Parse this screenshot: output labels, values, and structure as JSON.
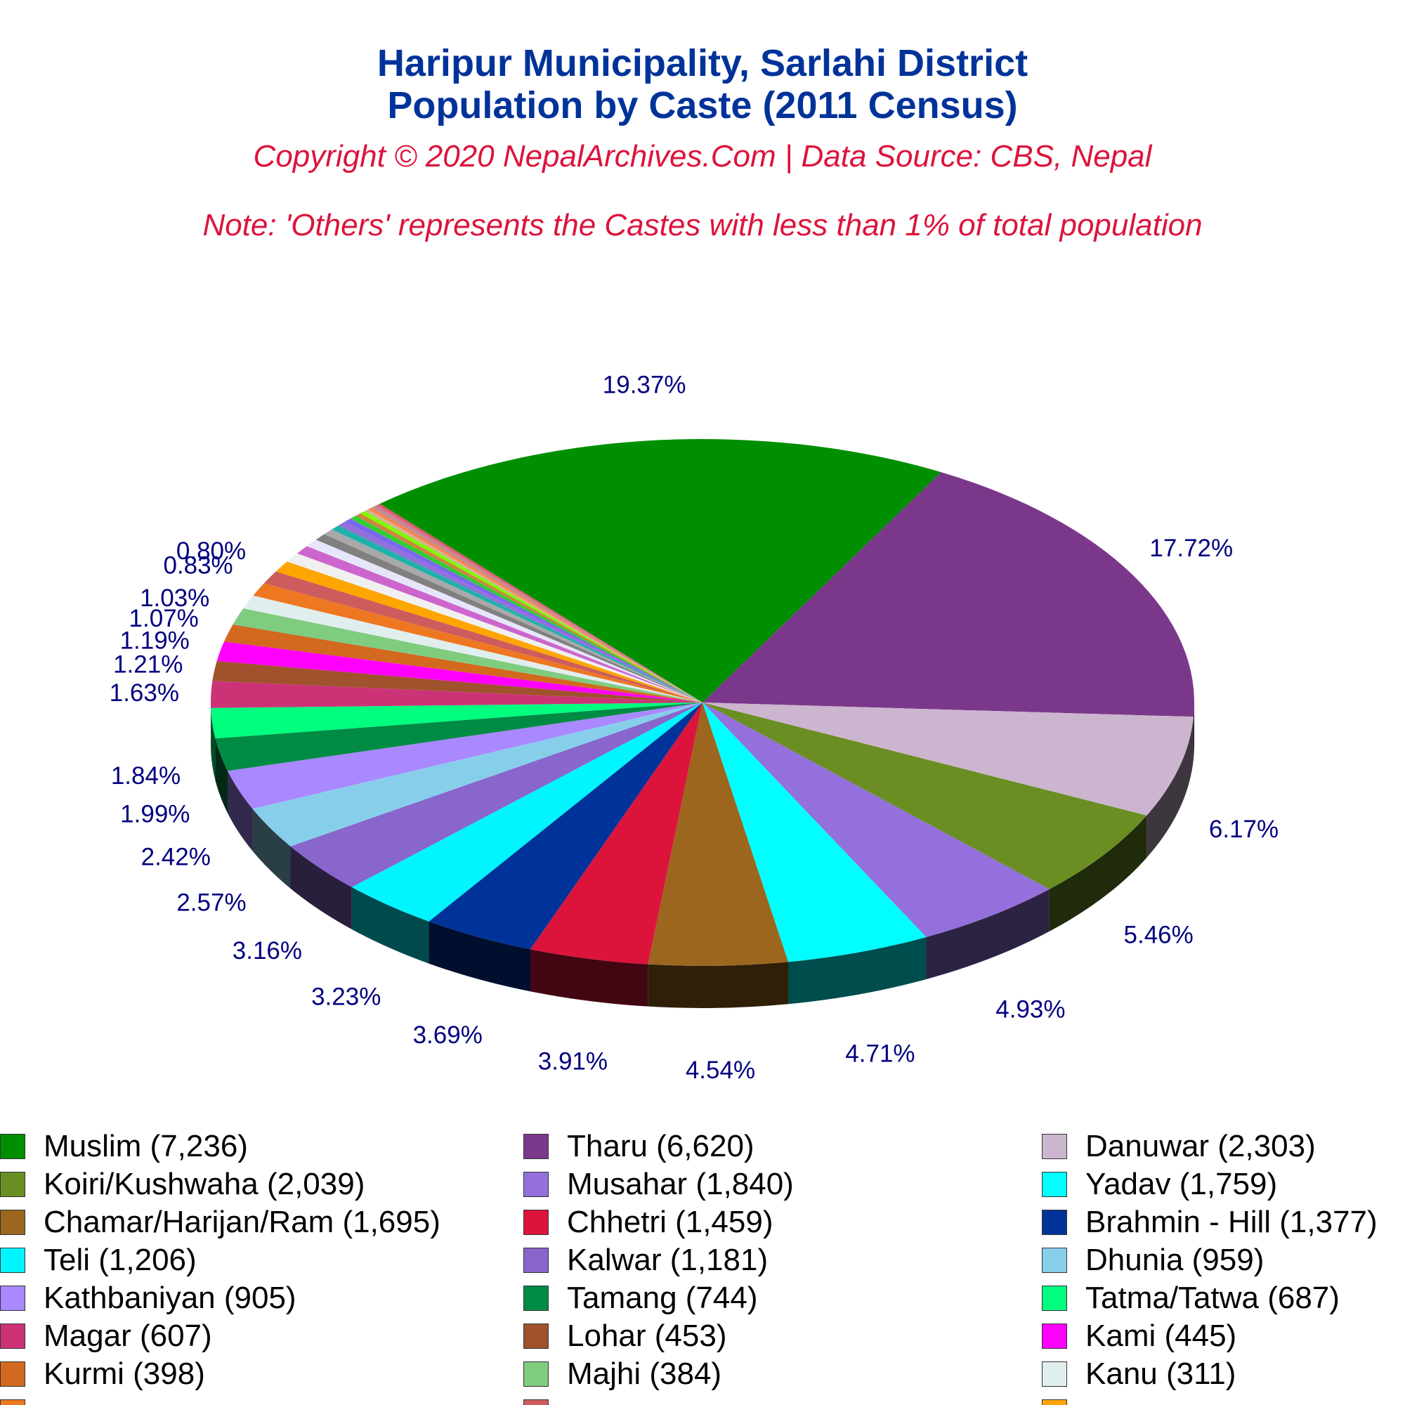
{
  "header": {
    "title_line1": "Haripur Municipality, Sarlahi District",
    "title_line2": "Population by Caste (2011 Census)",
    "copyright": "Copyright © 2020 NepalArchives.Com | Data Source: CBS, Nepal",
    "note": "Note: 'Others' represents the Castes with less than 1% of total population"
  },
  "chart_data": {
    "type": "pie",
    "style": "3d",
    "title": "Haripur Municipality, Sarlahi District Population by Caste (2011 Census)",
    "legend_position": "bottom",
    "slices": [
      {
        "label": "Muslim (7,236)",
        "value": 7236,
        "pct": "19.37%",
        "color": "#008f00"
      },
      {
        "label": "Tharu (6,620)",
        "value": 6620,
        "pct": "17.72%",
        "color": "#7b388b"
      },
      {
        "label": "Danuwar (2,303)",
        "value": 2303,
        "pct": "6.17%",
        "color": "#ccb5cf"
      },
      {
        "label": "Koiri/Kushwaha (2,039)",
        "value": 2039,
        "pct": "5.46%",
        "color": "#6b8e23"
      },
      {
        "label": "Musahar (1,840)",
        "value": 1840,
        "pct": "4.93%",
        "color": "#9370db"
      },
      {
        "label": "Yadav (1,759)",
        "value": 1759,
        "pct": "4.71%",
        "color": "#00ffff"
      },
      {
        "label": "Chamar/Harijan/Ram (1,695)",
        "value": 1695,
        "pct": "4.54%",
        "color": "#9c661f"
      },
      {
        "label": "Chhetri (1,459)",
        "value": 1459,
        "pct": "3.91%",
        "color": "#dc143c"
      },
      {
        "label": "Brahmin - Hill (1,377)",
        "value": 1377,
        "pct": "3.69%",
        "color": "#003399"
      },
      {
        "label": "Teli (1,206)",
        "value": 1206,
        "pct": "3.23%",
        "color": "#00f5ff"
      },
      {
        "label": "Kalwar (1,181)",
        "value": 1181,
        "pct": "3.16%",
        "color": "#8866cc"
      },
      {
        "label": "Dhunia (959)",
        "value": 959,
        "pct": "2.57%",
        "color": "#87ceeb"
      },
      {
        "label": "Kathbaniyan (905)",
        "value": 905,
        "pct": "2.42%",
        "color": "#aa88ff"
      },
      {
        "label": "Tamang (744)",
        "value": 744,
        "pct": "1.99%",
        "color": "#008b45"
      },
      {
        "label": "Tatma/Tatwa (687)",
        "value": 687,
        "pct": "1.84%",
        "color": "#00ff7f"
      },
      {
        "label": "Magar (607)",
        "value": 607,
        "pct": "1.63%",
        "color": "#cc3377"
      },
      {
        "label": "Lohar (453)",
        "value": 453,
        "pct": "1.21%",
        "color": "#a0522d"
      },
      {
        "label": "Kami (445)",
        "value": 445,
        "pct": "1.19%",
        "color": "#ff00ff"
      },
      {
        "label": "Kurmi (398)",
        "value": 398,
        "pct": "1.07%",
        "color": "#d2691e"
      },
      {
        "label": "Majhi (384)",
        "value": 384,
        "pct": "1.03%",
        "color": "#7fcc7f"
      },
      {
        "label": "Kanu (311)",
        "value": 311,
        "pct": "",
        "color": "#e0eeee"
      },
      {
        "label": "",
        "value": 307,
        "pct": "0.83%",
        "color": "#ee7722"
      },
      {
        "label": "",
        "value": 300,
        "pct": "0.80%",
        "color": "#cd5c5c"
      },
      {
        "label": "",
        "value": 261,
        "pct": "",
        "color": "#ffa500"
      },
      {
        "label": "",
        "value": 220,
        "pct": "",
        "color": "#f0f0f0"
      },
      {
        "label": "",
        "value": 200,
        "pct": "",
        "color": "#cc66cc"
      },
      {
        "label": "",
        "value": 180,
        "pct": "",
        "color": "#e6e6fa"
      },
      {
        "label": "",
        "value": 160,
        "pct": "",
        "color": "#808080"
      },
      {
        "label": "",
        "value": 140,
        "pct": "",
        "color": "#a9a9a9"
      },
      {
        "label": "",
        "value": 120,
        "pct": "",
        "color": "#20b2aa"
      },
      {
        "label": "",
        "value": 110,
        "pct": "",
        "color": "#9370db"
      },
      {
        "label": "",
        "value": 100,
        "pct": "",
        "color": "#7b68ee"
      },
      {
        "label": "",
        "value": 90,
        "pct": "",
        "color": "#32cd32"
      },
      {
        "label": "",
        "value": 80,
        "pct": "",
        "color": "#cd853f"
      },
      {
        "label": "",
        "value": 70,
        "pct": "",
        "color": "#7cfc00"
      },
      {
        "label": "",
        "value": 60,
        "pct": "",
        "color": "#d2b48c"
      },
      {
        "label": "",
        "value": 55,
        "pct": "",
        "color": "#ff7f50"
      },
      {
        "label": "",
        "value": 50,
        "pct": "",
        "color": "#bc8f8f"
      },
      {
        "label": "",
        "value": 45,
        "pct": "",
        "color": "#db7093"
      },
      {
        "label": "",
        "value": 40,
        "pct": "",
        "color": "#cd5c5c"
      }
    ],
    "legend": [
      {
        "text": "Muslim (7,236)",
        "color": "#008f00"
      },
      {
        "text": "Tharu (6,620)",
        "color": "#7b388b"
      },
      {
        "text": "Danuwar (2,303)",
        "color": "#ccb5cf"
      },
      {
        "text": "Koiri/Kushwaha (2,039)",
        "color": "#6b8e23"
      },
      {
        "text": "Musahar (1,840)",
        "color": "#9370db"
      },
      {
        "text": "Yadav (1,759)",
        "color": "#00ffff"
      },
      {
        "text": "Chamar/Harijan/Ram (1,695)",
        "color": "#9c661f"
      },
      {
        "text": "Chhetri (1,459)",
        "color": "#dc143c"
      },
      {
        "text": "Brahmin - Hill (1,377)",
        "color": "#003399"
      },
      {
        "text": "Teli (1,206)",
        "color": "#00f5ff"
      },
      {
        "text": "Kalwar (1,181)",
        "color": "#8866cc"
      },
      {
        "text": "Dhunia (959)",
        "color": "#87ceeb"
      },
      {
        "text": "Kathbaniyan (905)",
        "color": "#aa88ff"
      },
      {
        "text": "Tamang (744)",
        "color": "#008b45"
      },
      {
        "text": "Tatma/Tatwa (687)",
        "color": "#00ff7f"
      },
      {
        "text": "Magar (607)",
        "color": "#cc3377"
      },
      {
        "text": "Lohar (453)",
        "color": "#a0522d"
      },
      {
        "text": "Kami (445)",
        "color": "#ff00ff"
      },
      {
        "text": "Kurmi (398)",
        "color": "#d2691e"
      },
      {
        "text": "Majhi (384)",
        "color": "#7fcc7f"
      },
      {
        "text": "Kanu (311)",
        "color": "#e0eeee"
      },
      {
        "text": "",
        "color": "#ee7722"
      },
      {
        "text": "",
        "color": "#cd5c5c"
      },
      {
        "text": "",
        "color": "#ffa500"
      }
    ]
  }
}
